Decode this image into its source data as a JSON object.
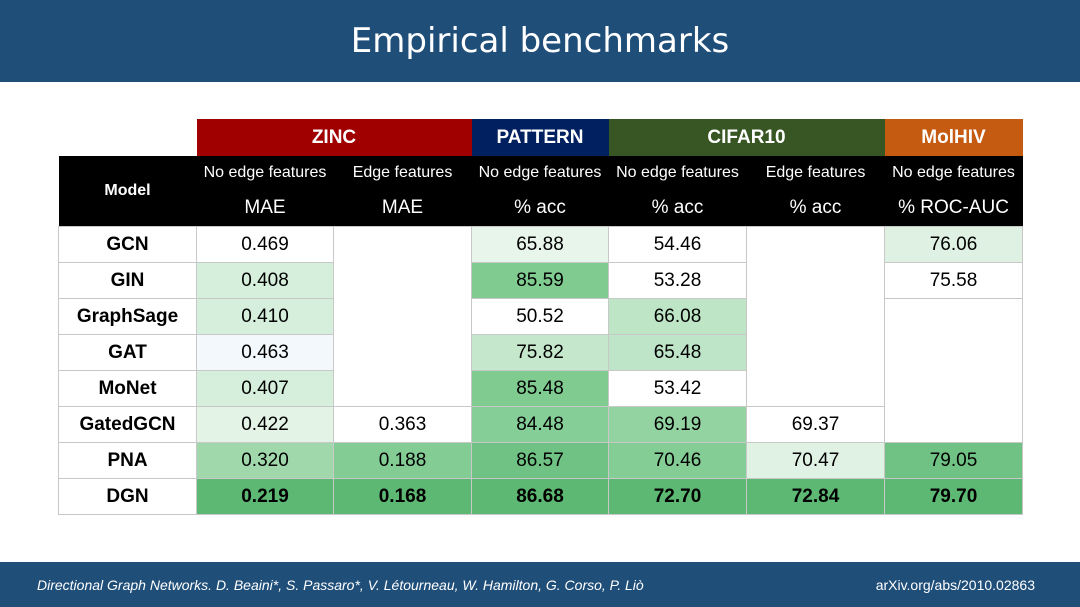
{
  "title": "Empirical benchmarks",
  "table": {
    "model_header": "Model",
    "groups": [
      {
        "name": "ZINC",
        "color": "#a00000"
      },
      {
        "name": "PATTERN",
        "color": "#002060"
      },
      {
        "name": "CIFAR10",
        "color": "#375623"
      },
      {
        "name": "MolHIV",
        "color": "#c55a11"
      }
    ],
    "subheaders": [
      "No edge features",
      "Edge features",
      "No edge features",
      "No edge features",
      "Edge features",
      "No edge features"
    ],
    "metrics": [
      "MAE",
      "MAE",
      "% acc",
      "% acc",
      "% acc",
      "% ROC-AUC"
    ],
    "rows": [
      {
        "model": "GCN",
        "values": [
          "0.469",
          "",
          "65.88",
          "54.46",
          "",
          "76.06"
        ]
      },
      {
        "model": "GIN",
        "values": [
          "0.408",
          "",
          "85.59",
          "53.28",
          "",
          "75.58"
        ]
      },
      {
        "model": "GraphSage",
        "values": [
          "0.410",
          "",
          "50.52",
          "66.08",
          "",
          ""
        ]
      },
      {
        "model": "GAT",
        "values": [
          "0.463",
          "",
          "75.82",
          "65.48",
          "",
          ""
        ]
      },
      {
        "model": "MoNet",
        "values": [
          "0.407",
          "",
          "85.48",
          "53.42",
          "",
          ""
        ]
      },
      {
        "model": "GatedGCN",
        "values": [
          "0.422",
          "0.363",
          "84.48",
          "69.19",
          "69.37",
          ""
        ]
      },
      {
        "model": "PNA",
        "values": [
          "0.320",
          "0.188",
          "86.57",
          "70.46",
          "70.47",
          "79.05"
        ]
      },
      {
        "model": "DGN",
        "values": [
          "0.219",
          "0.168",
          "86.68",
          "72.70",
          "72.84",
          "79.70"
        ]
      }
    ],
    "cell_colors": [
      [
        "#ffffff",
        "#ffffff",
        "#e8f5ea",
        "#ffffff",
        "#ffffff",
        "#def1e2"
      ],
      [
        "#d6efdc",
        "#ffffff",
        "#7fcb90",
        "#ffffff",
        "#ffffff",
        "#ffffff"
      ],
      [
        "#d6efdc",
        "#ffffff",
        "#ffffff",
        "#bde5c6",
        "#ffffff",
        "#ffffff"
      ],
      [
        "#f3f8fc",
        "#ffffff",
        "#c5e8cc",
        "#bfe5c8",
        "#ffffff",
        "#ffffff"
      ],
      [
        "#d6efdc",
        "#ffffff",
        "#7fcb90",
        "#ffffff",
        "#ffffff",
        "#ffffff"
      ],
      [
        "#e3f3e6",
        "#ffffff",
        "#86ce97",
        "#93d3a2",
        "#ffffff",
        "#ffffff"
      ],
      [
        "#a0d8ac",
        "#83cc94",
        "#6fc284",
        "#84cd95",
        "#e0f2e4",
        "#6fc284"
      ],
      [
        "#5cb872",
        "#5cb872",
        "#5cb872",
        "#5cb872",
        "#5cb872",
        "#5cb872"
      ]
    ]
  },
  "footer": {
    "citation": "Directional Graph Networks. D. Beaini*, S. Passaro*, V. Létourneau, W. Hamilton, G. Corso, P. Liò",
    "url": "arXiv.org/abs/2010.02863"
  }
}
